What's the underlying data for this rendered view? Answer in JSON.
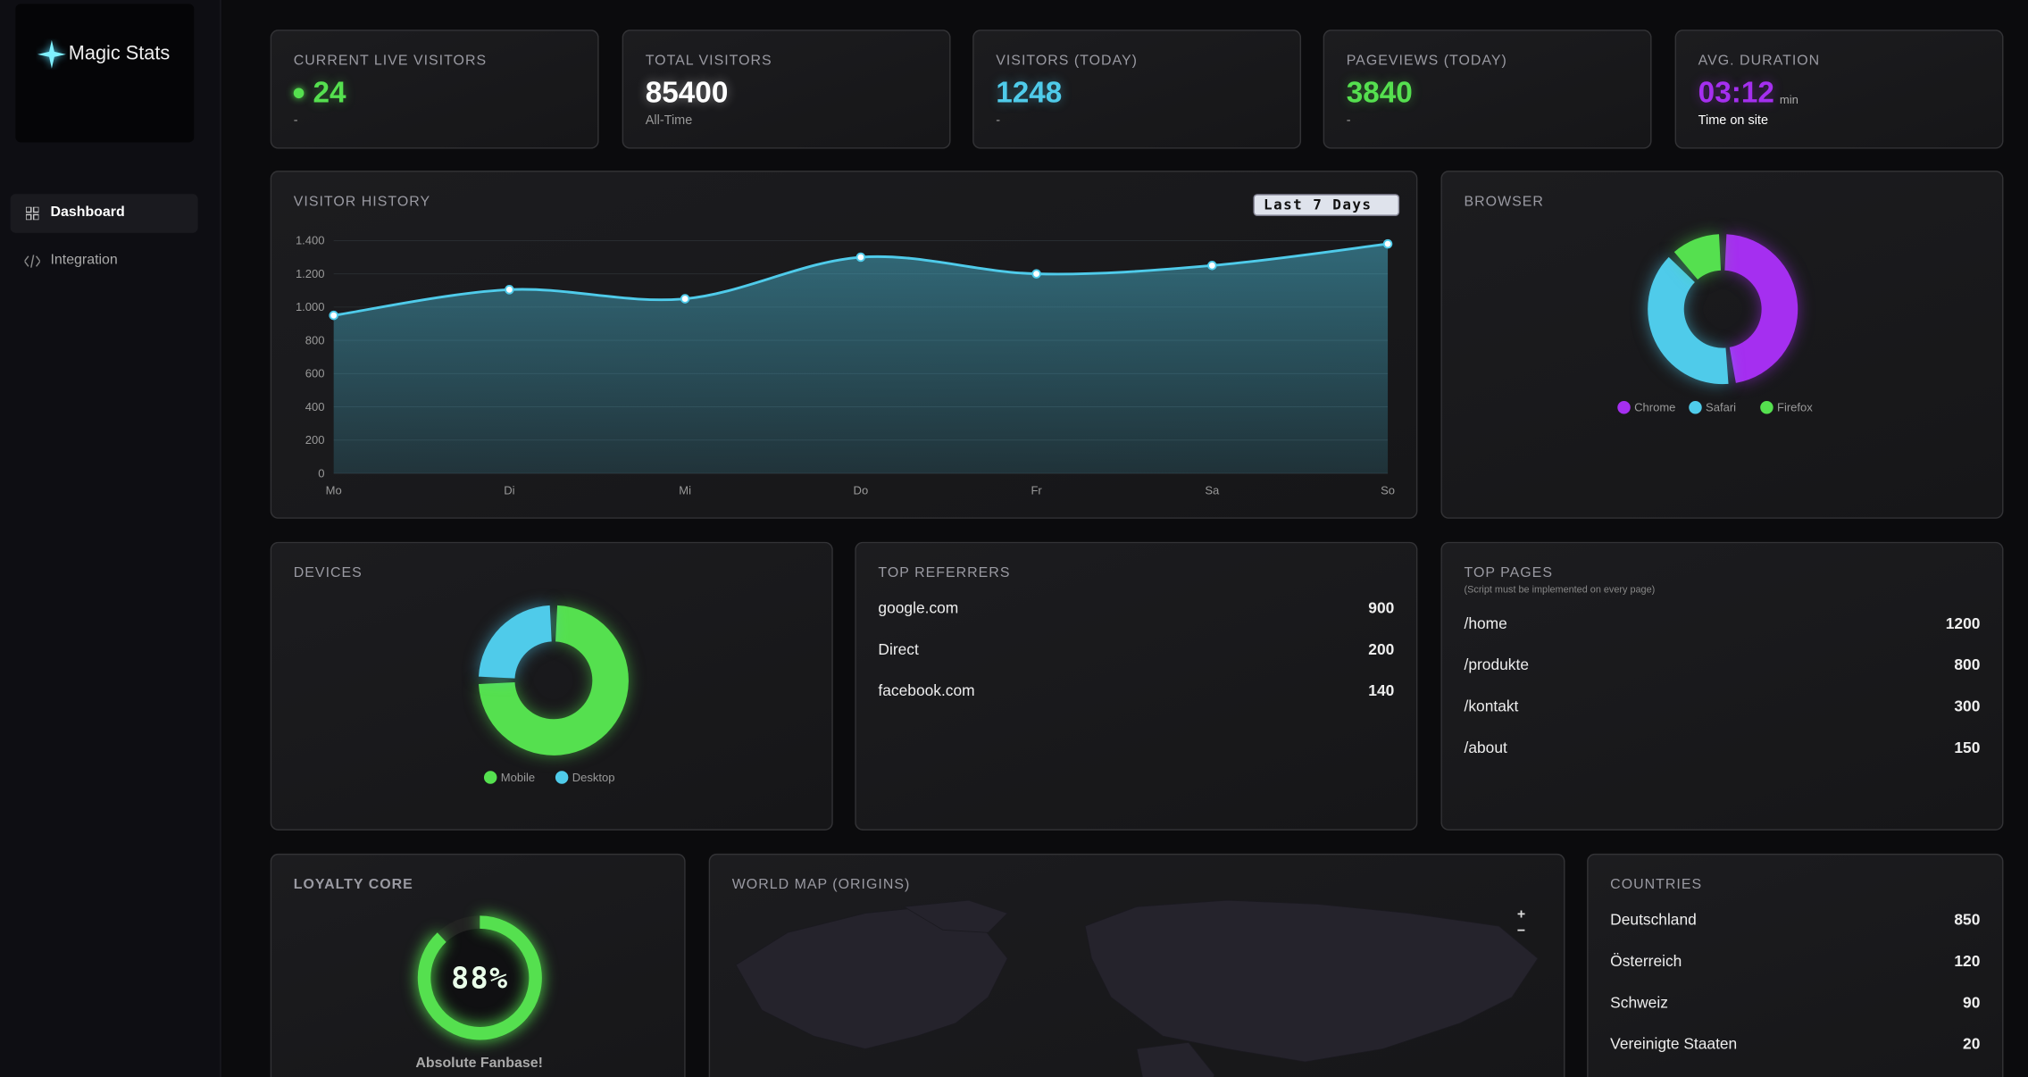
{
  "sidebar": {
    "brand": "Magic Stats",
    "nav": [
      "Dashboard",
      "Integration"
    ]
  },
  "stats": [
    {
      "label": "CURRENT LIVE VISITORS",
      "value": 24,
      "sub": "-",
      "color": "#55e04f"
    },
    {
      "label": "TOTAL VISITORS",
      "value": 85400,
      "sub": "All-Time",
      "color": "#ffffff"
    },
    {
      "label": "VISITORS (TODAY)",
      "value": 1248,
      "sub": "-",
      "color": "#4fcbea"
    },
    {
      "label": "PAGEVIEWS (TODAY)",
      "value": 3840,
      "sub": "-",
      "color": "#55e04f"
    },
    {
      "label": "AVG. DURATION",
      "value": "03:12",
      "unit": "min",
      "sub": "Time on site",
      "color": "#a52ff0"
    }
  ],
  "range_select": "Last 7 Days",
  "chart_data": [
    {
      "type": "line",
      "title": "VISITOR HISTORY",
      "categories": [
        "Mo",
        "Di",
        "Mi",
        "Do",
        "Fr",
        "Sa",
        "So"
      ],
      "values": [
        950,
        1105,
        1050,
        1300,
        1200,
        1250,
        1380
      ],
      "color": "#4fcbea",
      "ylim": [
        0,
        1400
      ],
      "yticks": [
        0,
        200,
        400,
        600,
        800,
        {
          "value": 1000,
          "label": "1.000"
        },
        {
          "value": 1200,
          "label": "1.200"
        },
        {
          "value": 1400,
          "label": "1.400"
        }
      ],
      "grid": true
    },
    {
      "type": "doughnut",
      "title": "BROWSER",
      "categories": [
        "Chrome",
        "Safari",
        "Firefox"
      ],
      "values": [
        48,
        40,
        12
      ],
      "colors": [
        "#a52ff0",
        "#4fcbea",
        "#55e04f"
      ]
    },
    {
      "type": "doughnut",
      "title": "DEVICES",
      "categories": [
        "Mobile",
        "Desktop"
      ],
      "values": [
        75,
        25
      ],
      "colors": [
        "#55e04f",
        "#4fcbea"
      ]
    }
  ],
  "referrers": {
    "title": "TOP REFERRERS",
    "items": [
      {
        "name": "google.com",
        "value": 900
      },
      {
        "name": "Direct",
        "value": 200
      },
      {
        "name": "facebook.com",
        "value": 140
      }
    ]
  },
  "pages": {
    "title": "TOP PAGES",
    "subtitle": "(Script must be implemented on every page)",
    "items": [
      {
        "name": "/home",
        "value": 1200
      },
      {
        "name": "/produkte",
        "value": 800
      },
      {
        "name": "/kontakt",
        "value": 300
      },
      {
        "name": "/about",
        "value": 150
      }
    ]
  },
  "countries": {
    "title": "COUNTRIES",
    "items": [
      {
        "name": "Deutschland",
        "value": 850
      },
      {
        "name": "Österreich",
        "value": 120
      },
      {
        "name": "Schweiz",
        "value": 90
      },
      {
        "name": "Vereinigte Staaten",
        "value": 20
      }
    ]
  },
  "loyalty": {
    "title": "LOYALTY CORE",
    "value": 88,
    "value_label": "88%",
    "caption": "Absolute Fanbase!",
    "color": "#55e04f"
  },
  "map": {
    "title": "WORLD MAP (ORIGINS)",
    "zoom_in": "+",
    "zoom_out": "−"
  }
}
